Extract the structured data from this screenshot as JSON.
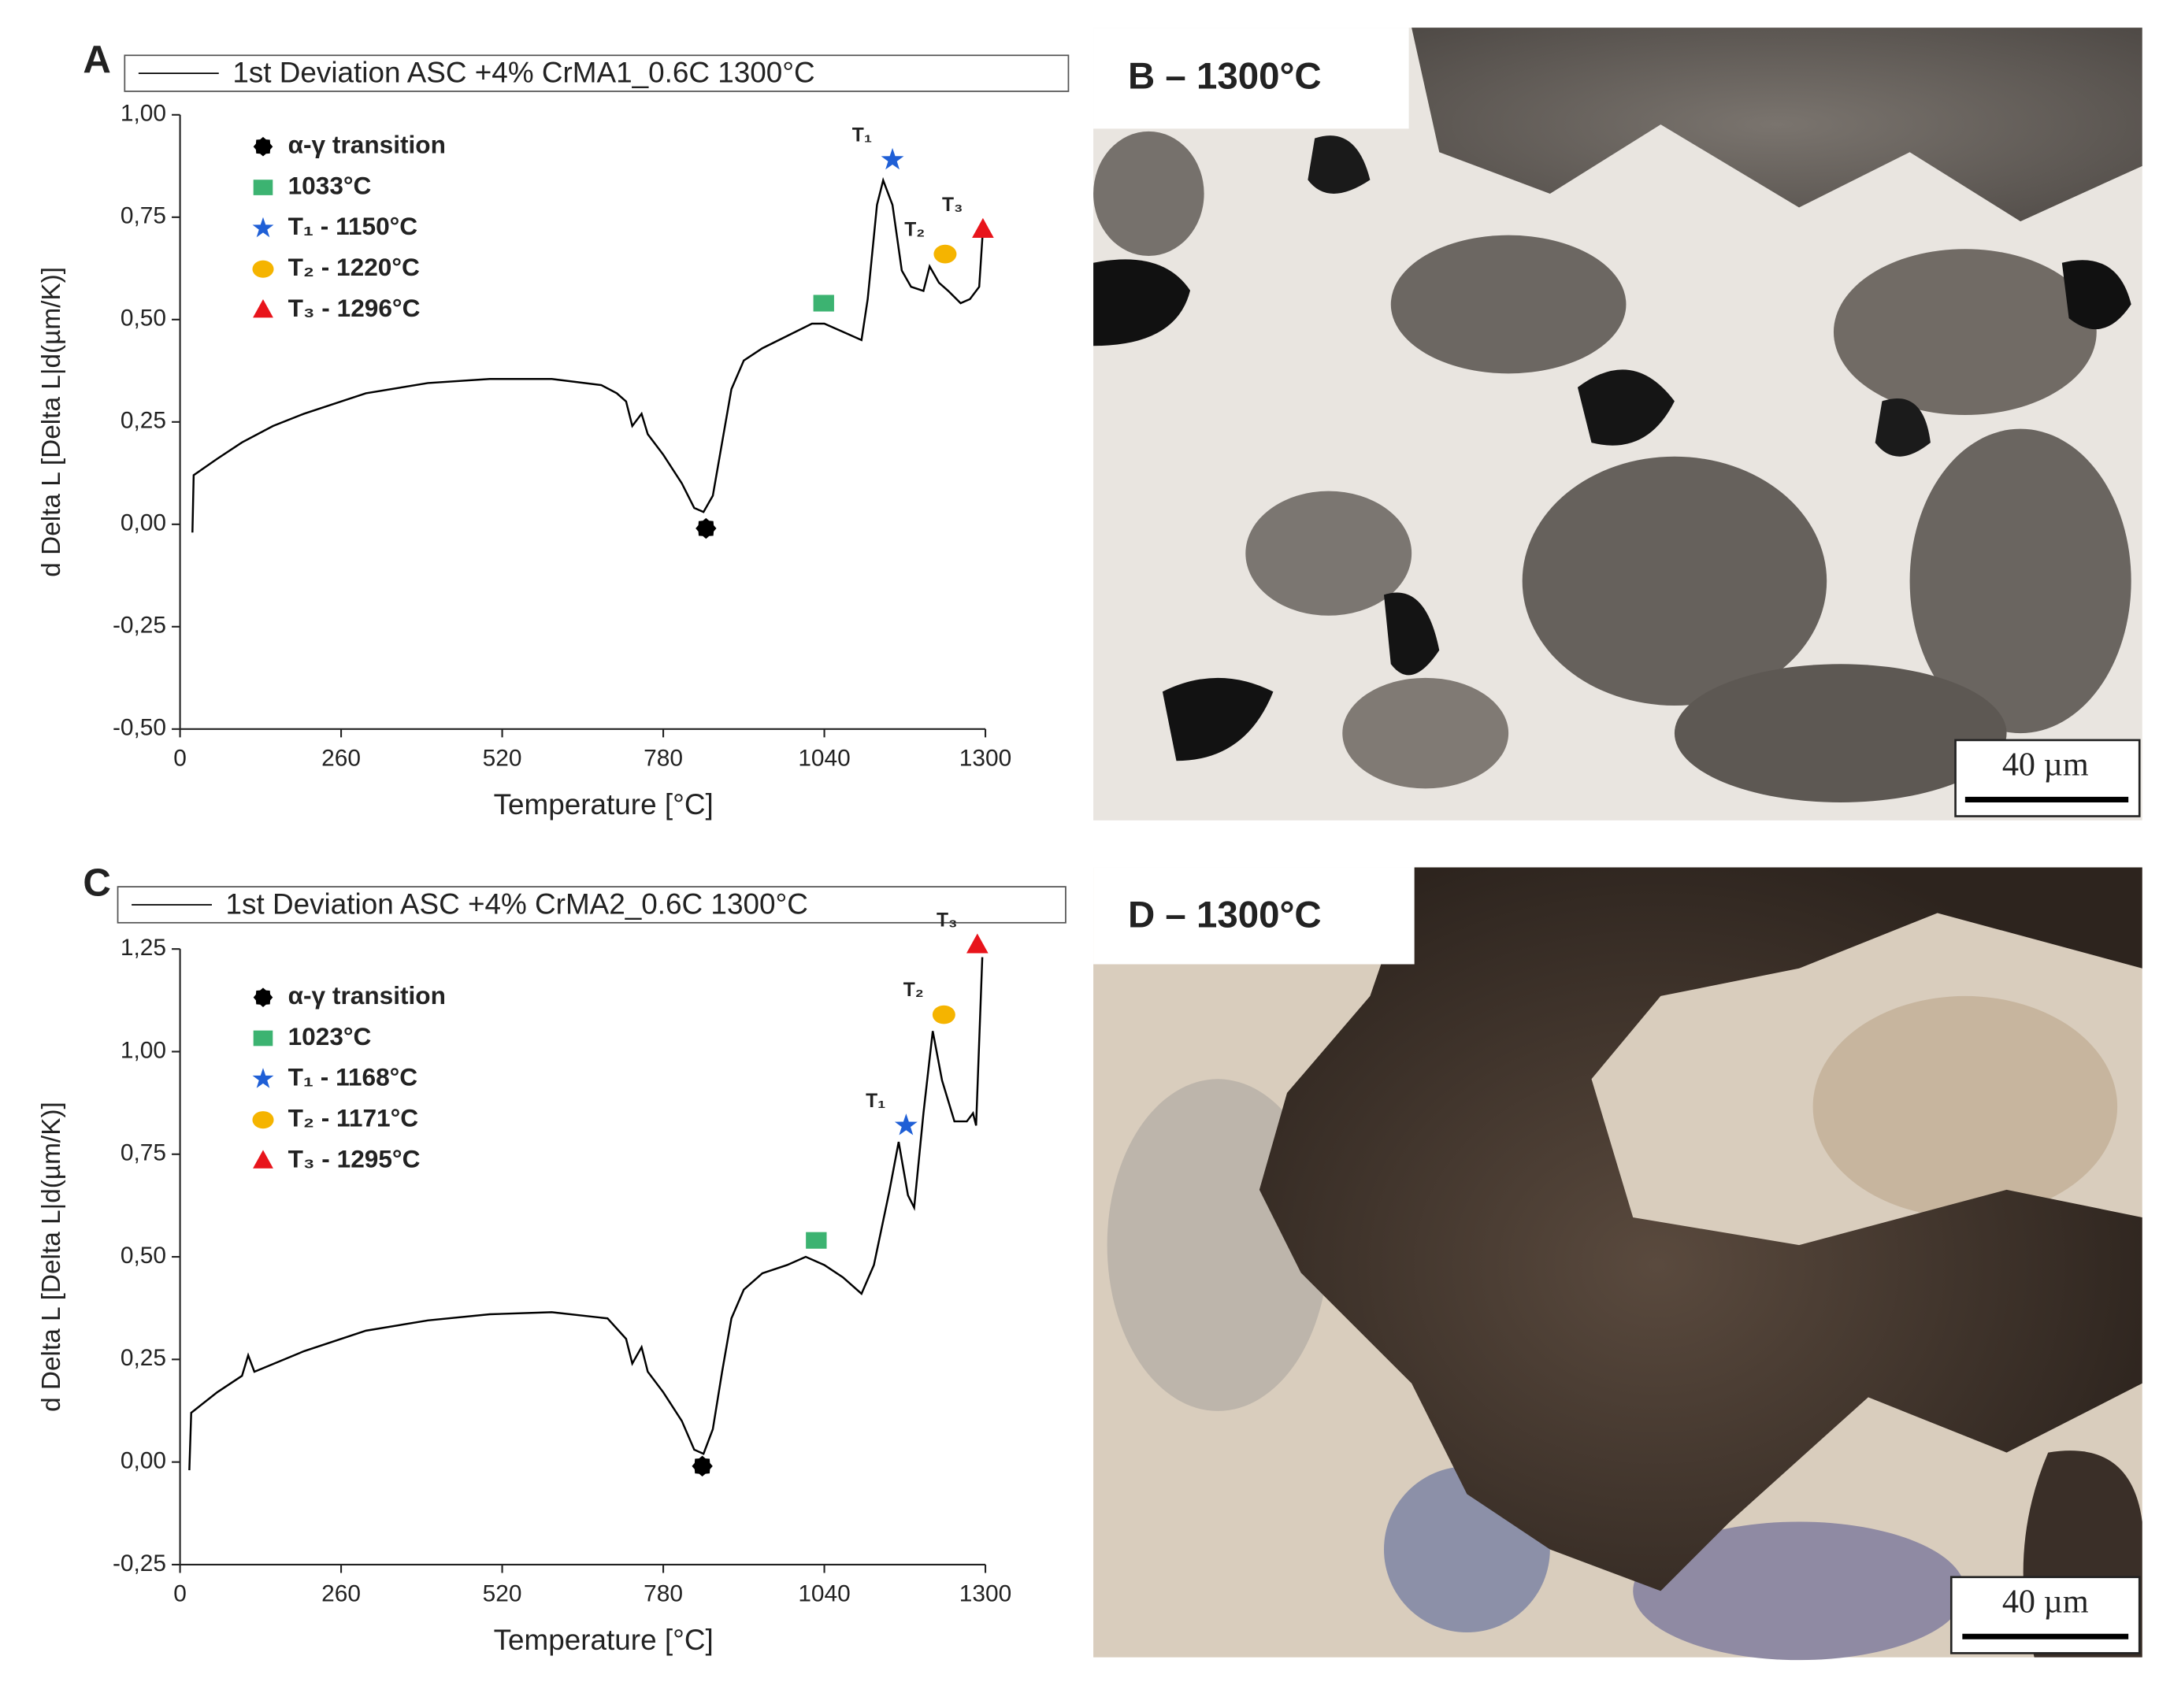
{
  "chart_data": [
    {
      "type": "line",
      "panel": "A",
      "xlabel": "Temperature [°C]",
      "ylabel": "d Delta L [Delta L|d(µm/K)]",
      "xlim": [
        0,
        1300
      ],
      "xticks": [
        0,
        260,
        520,
        780,
        1040,
        1300
      ],
      "ylim": [
        -0.5,
        1.0
      ],
      "yticks": [
        {
          "value": -0.5,
          "label": "-0,50"
        },
        {
          "value": -0.25,
          "label": "-0,25"
        },
        {
          "value": 0,
          "label": "0,00"
        },
        {
          "value": 0.25,
          "label": "0,25"
        },
        {
          "value": 0.5,
          "label": "0,50"
        },
        {
          "value": 0.75,
          "label": "0,75"
        },
        {
          "value": 1.0,
          "label": "1,00"
        }
      ],
      "series": [
        {
          "type": "line",
          "name": "1st Deviation ASC +4% CrMA1_0.6C 1300°C",
          "color": "#000000",
          "x": [
            20,
            22,
            60,
            100,
            150,
            200,
            300,
            400,
            500,
            600,
            680,
            705,
            720,
            730,
            745,
            755,
            780,
            810,
            830,
            845,
            860,
            875,
            890,
            910,
            940,
            980,
            1020,
            1040,
            1070,
            1100,
            1110,
            1125,
            1135,
            1150,
            1165,
            1180,
            1200,
            1210,
            1225,
            1240,
            1260,
            1275,
            1290,
            1296
          ],
          "values": [
            -0.02,
            0.12,
            0.16,
            0.2,
            0.24,
            0.27,
            0.32,
            0.345,
            0.355,
            0.355,
            0.34,
            0.32,
            0.3,
            0.24,
            0.27,
            0.22,
            0.17,
            0.1,
            0.04,
            0.03,
            0.07,
            0.2,
            0.33,
            0.4,
            0.43,
            0.46,
            0.49,
            0.49,
            0.47,
            0.45,
            0.55,
            0.78,
            0.84,
            0.78,
            0.62,
            0.58,
            0.57,
            0.63,
            0.59,
            0.57,
            0.54,
            0.55,
            0.58,
            0.72
          ]
        },
        {
          "type": "scatter",
          "name": "α-γ transition",
          "marker": "cog",
          "color": "#000000",
          "x": [
            849
          ],
          "values": [
            -0.01
          ]
        },
        {
          "type": "scatter",
          "name": "1033°C",
          "marker": "square",
          "color": "#3cb371",
          "x": [
            1039
          ],
          "values": [
            0.54
          ]
        },
        {
          "type": "scatter",
          "name": "T₁ - 1150°C",
          "marker": "star",
          "color": "#1f5fd6",
          "x": [
            1150
          ],
          "values": [
            0.89
          ],
          "point_label": "T₁"
        },
        {
          "type": "scatter",
          "name": "T₂ - 1220°C",
          "marker": "circle",
          "color": "#f5b400",
          "x": [
            1235
          ],
          "values": [
            0.66
          ],
          "point_label": "T₂"
        },
        {
          "type": "scatter",
          "name": "T₃ - 1296°C",
          "marker": "triangle",
          "color": "#e8141b",
          "x": [
            1296
          ],
          "values": [
            0.72
          ],
          "point_label": "T₃"
        }
      ]
    },
    {
      "type": "line",
      "panel": "C",
      "xlabel": "Temperature [°C]",
      "ylabel": "d Delta L [Delta L|d(µm/K)]",
      "xlim": [
        0,
        1300
      ],
      "xticks": [
        0,
        260,
        520,
        780,
        1040,
        1300
      ],
      "ylim": [
        -0.25,
        1.25
      ],
      "yticks": [
        {
          "value": -0.25,
          "label": "-0,25"
        },
        {
          "value": 0,
          "label": "0,00"
        },
        {
          "value": 0.25,
          "label": "0,25"
        },
        {
          "value": 0.5,
          "label": "0,50"
        },
        {
          "value": 0.75,
          "label": "0,75"
        },
        {
          "value": 1.0,
          "label": "1,00"
        },
        {
          "value": 1.25,
          "label": "1,25"
        }
      ],
      "series": [
        {
          "type": "line",
          "name": "1st Deviation ASC +4% CrMA2_0.6C 1300°C",
          "color": "#000000",
          "x": [
            15,
            18,
            60,
            100,
            110,
            120,
            200,
            300,
            400,
            500,
            600,
            690,
            720,
            730,
            745,
            755,
            780,
            810,
            830,
            845,
            860,
            875,
            890,
            910,
            940,
            980,
            1010,
            1040,
            1070,
            1100,
            1120,
            1145,
            1160,
            1175,
            1185,
            1200,
            1215,
            1230,
            1250,
            1270,
            1280,
            1285,
            1295
          ],
          "values": [
            -0.02,
            0.12,
            0.17,
            0.21,
            0.26,
            0.22,
            0.27,
            0.32,
            0.345,
            0.36,
            0.365,
            0.35,
            0.3,
            0.24,
            0.28,
            0.22,
            0.17,
            0.1,
            0.03,
            0.02,
            0.08,
            0.22,
            0.35,
            0.42,
            0.46,
            0.48,
            0.5,
            0.48,
            0.45,
            0.41,
            0.48,
            0.66,
            0.78,
            0.65,
            0.62,
            0.85,
            1.05,
            0.93,
            0.83,
            0.83,
            0.85,
            0.82,
            1.23
          ]
        },
        {
          "type": "scatter",
          "name": "α-γ transition",
          "marker": "cog",
          "color": "#000000",
          "x": [
            843
          ],
          "values": [
            -0.01
          ]
        },
        {
          "type": "scatter",
          "name": "1023°C",
          "marker": "square",
          "color": "#3cb371",
          "x": [
            1027
          ],
          "values": [
            0.54
          ]
        },
        {
          "type": "scatter",
          "name": "T₁ - 1168°C",
          "marker": "star",
          "color": "#1f5fd6",
          "x": [
            1172
          ],
          "values": [
            0.82
          ],
          "point_label": "T₁"
        },
        {
          "type": "scatter",
          "name": "T₂ - 1171°C",
          "marker": "circle",
          "color": "#f5b400",
          "x": [
            1233
          ],
          "values": [
            1.09
          ],
          "point_label": "T₂"
        },
        {
          "type": "scatter",
          "name": "T₃ - 1295°C",
          "marker": "triangle",
          "color": "#e8141b",
          "x": [
            1287
          ],
          "values": [
            1.26
          ],
          "point_label": "T₃"
        }
      ]
    }
  ],
  "micrographs": [
    {
      "label": "B – 1300°C",
      "scale_bar": "40 µm"
    },
    {
      "label": "D – 1300°C",
      "scale_bar": "40 µm"
    }
  ]
}
